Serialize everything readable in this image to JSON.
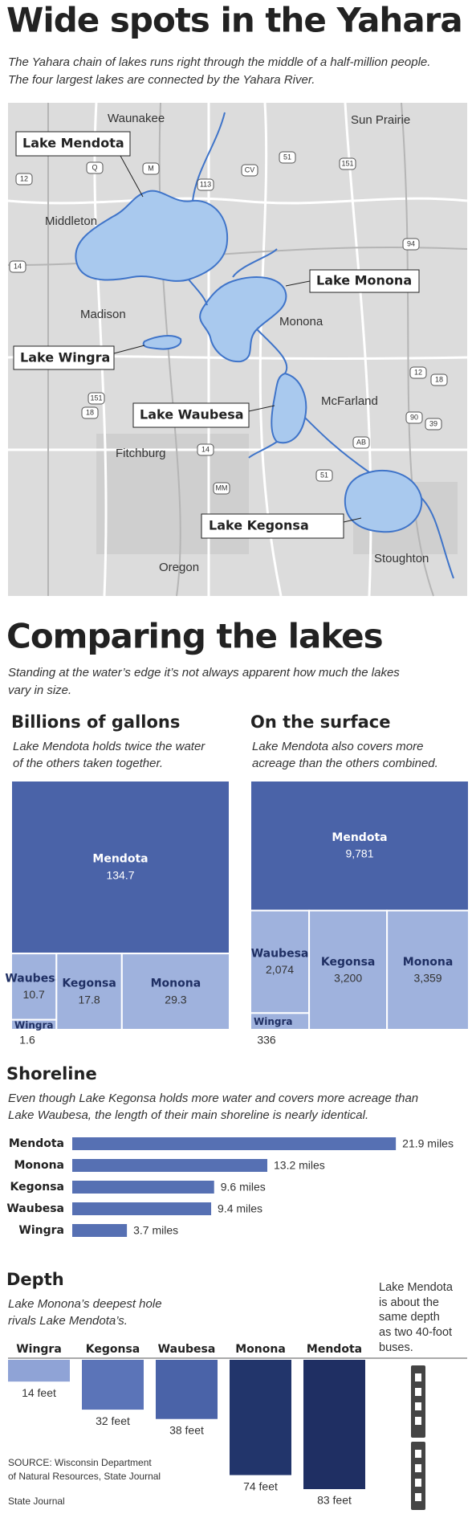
{
  "header": {
    "title": "Wide spots in the Yahara",
    "subtitle": [
      "The Yahara chain of lakes runs right through the middle of a half-million people.",
      "The four largest lakes are connected by the Yahara River."
    ]
  },
  "map": {
    "places": [
      "Waunakee",
      "Sun Prairie",
      "Middleton",
      "Madison",
      "Monona",
      "McFarland",
      "Fitchburg",
      "Oregon",
      "Stoughton"
    ],
    "lakes": [
      "Lake Mendota",
      "Lake Monona",
      "Lake Wingra",
      "Lake Waubesa",
      "Lake Kegonsa"
    ],
    "roads": [
      "12",
      "Q",
      "M",
      "CV",
      "113",
      "51",
      "151",
      "94",
      "14",
      "12",
      "18",
      "151",
      "18",
      "90",
      "39",
      "AB",
      "51",
      "MM",
      "14"
    ]
  },
  "comparison": {
    "title": "Comparing the lakes",
    "subtitle": [
      "Standing at the water’s edge it’s not always apparent how much the lakes",
      "vary in size."
    ]
  },
  "chart_data": [
    {
      "type": "treemap",
      "title": "Billions of gallons",
      "subtitle": [
        "Lake Mendota holds twice the water",
        "of the others taken together."
      ],
      "categories": [
        "Mendota",
        "Waubesa",
        "Wingra",
        "Kegonsa",
        "Monona"
      ],
      "values": [
        134.7,
        10.7,
        1.6,
        17.8,
        29.3
      ],
      "colors": [
        "#4a63a8",
        "#9fb2dd",
        "#9fb2dd",
        "#9fb2dd",
        "#9fb2dd"
      ]
    },
    {
      "type": "treemap",
      "title": "On the surface",
      "subtitle": [
        "Lake Mendota also covers more",
        "acreage than the others combined."
      ],
      "categories": [
        "Mendota",
        "Waubesa",
        "Wingra",
        "Kegonsa",
        "Monona"
      ],
      "values": [
        9781,
        2074,
        336,
        3200,
        3359
      ],
      "value_labels": [
        "9,781",
        "2,074",
        "336",
        "3,200",
        "3,359"
      ],
      "colors": [
        "#4a63a8",
        "#9fb2dd",
        "#9fb2dd",
        "#9fb2dd",
        "#9fb2dd"
      ]
    },
    {
      "type": "hbar",
      "title": "Shoreline",
      "subtitle": [
        "Even though Lake Kegonsa holds more water and covers more acreage than",
        "Lake Waubesa, the length of their main shoreline is nearly identical."
      ],
      "categories": [
        "Mendota",
        "Monona",
        "Kegonsa",
        "Waubesa",
        "Wingra"
      ],
      "values": [
        21.9,
        13.2,
        9.6,
        9.4,
        3.7
      ],
      "value_labels": [
        "21.9 miles",
        "13.2 miles",
        "9.6 miles",
        "9.4 miles",
        "3.7 miles"
      ],
      "color": "#5670b3",
      "xlim": [
        0,
        22
      ]
    },
    {
      "type": "depthbar",
      "title": "Depth",
      "subtitle": [
        "Lake Monona’s deepest hole",
        "rivals Lake Mendota’s."
      ],
      "categories": [
        "Wingra",
        "Kegonsa",
        "Waubesa",
        "Monona",
        "Mendota"
      ],
      "values": [
        14,
        32,
        38,
        74,
        83
      ],
      "value_labels": [
        "14 feet",
        "32 feet",
        "38 feet",
        "74 feet",
        "83 feet"
      ],
      "colors": [
        "#8fa3d6",
        "#5b74b8",
        "#4a63a8",
        "#22356b",
        "#1f2f63"
      ],
      "ylim": [
        0,
        85
      ]
    }
  ],
  "depth_note": [
    "Lake Mendota",
    "is about the",
    "same depth",
    "as two 40-foot",
    "buses."
  ],
  "source": [
    "SOURCE: Wisconsin Department",
    "of Natural Resources, State Journal"
  ],
  "credit": "State Journal"
}
